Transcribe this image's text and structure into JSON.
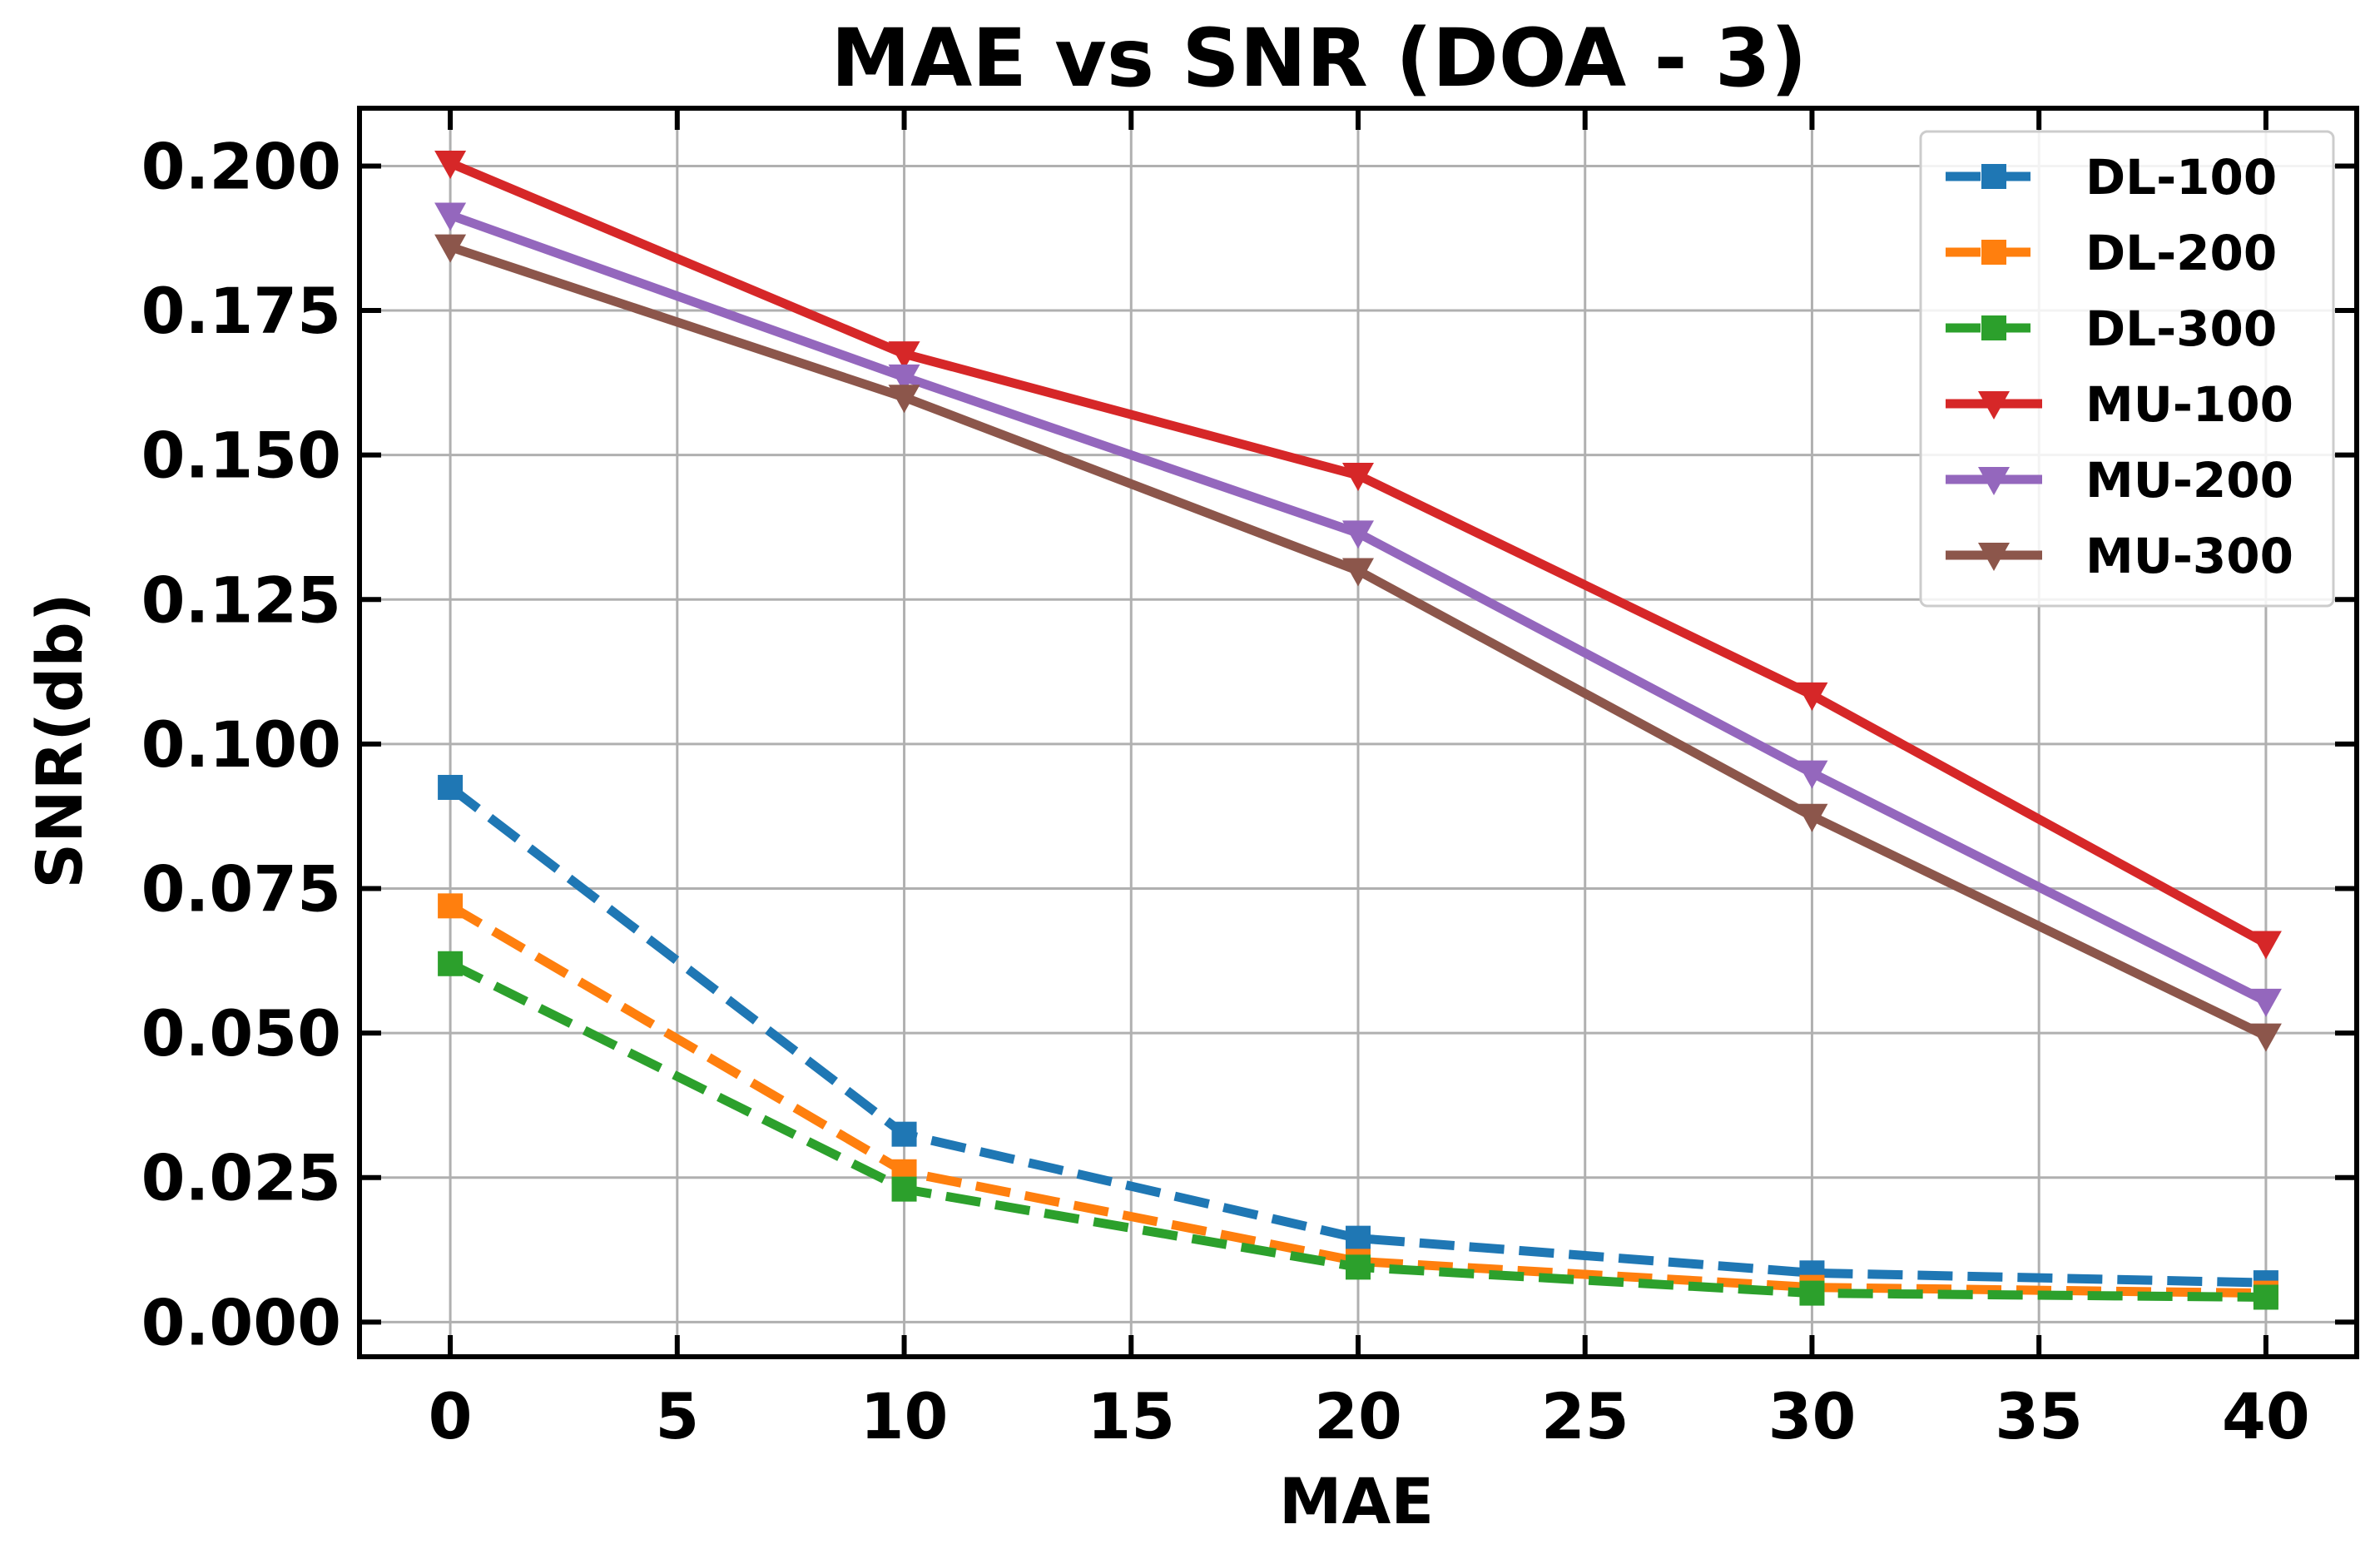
{
  "chart_data": {
    "type": "line",
    "title": "MAE vs SNR (DOA - 3)",
    "xlabel": "MAE",
    "ylabel": "SNR(db)",
    "xlim": [
      -2,
      42
    ],
    "ylim": [
      -0.006,
      0.21
    ],
    "x_ticks": [
      0,
      5,
      10,
      15,
      20,
      25,
      30,
      35,
      40
    ],
    "x_tick_labels": [
      "0",
      "5",
      "10",
      "15",
      "20",
      "25",
      "30",
      "35",
      "40"
    ],
    "y_ticks": [
      0.0,
      0.025,
      0.05,
      0.075,
      0.1,
      0.125,
      0.15,
      0.175,
      0.2
    ],
    "y_tick_labels": [
      "0.000",
      "0.025",
      "0.050",
      "0.075",
      "0.100",
      "0.125",
      "0.150",
      "0.175",
      "0.200"
    ],
    "grid": true,
    "legend_position": "top-right",
    "x": [
      0,
      10,
      20,
      30,
      40
    ],
    "series": [
      {
        "name": "DL-100",
        "values": [
          0.0925,
          0.0325,
          0.0145,
          0.0085,
          0.0068
        ],
        "color": "#1f77b4",
        "marker": "square",
        "dashed": true
      },
      {
        "name": "DL-200",
        "values": [
          0.072,
          0.026,
          0.0105,
          0.006,
          0.005
        ],
        "color": "#ff7f0e",
        "marker": "square",
        "dashed": true
      },
      {
        "name": "DL-300",
        "values": [
          0.062,
          0.023,
          0.0095,
          0.005,
          0.0043
        ],
        "color": "#2ca02c",
        "marker": "square",
        "dashed": true
      },
      {
        "name": "MU-100",
        "values": [
          0.2005,
          0.1675,
          0.1465,
          0.1085,
          0.0655
        ],
        "color": "#d62728",
        "marker": "triangle-down",
        "dashed": false
      },
      {
        "name": "MU-200",
        "values": [
          0.1915,
          0.1635,
          0.1365,
          0.095,
          0.0555
        ],
        "color": "#9467bd",
        "marker": "triangle-down",
        "dashed": false
      },
      {
        "name": "MU-300",
        "values": [
          0.186,
          0.16,
          0.13,
          0.0875,
          0.0495
        ],
        "color": "#8c564b",
        "marker": "triangle-down",
        "dashed": false
      }
    ]
  }
}
